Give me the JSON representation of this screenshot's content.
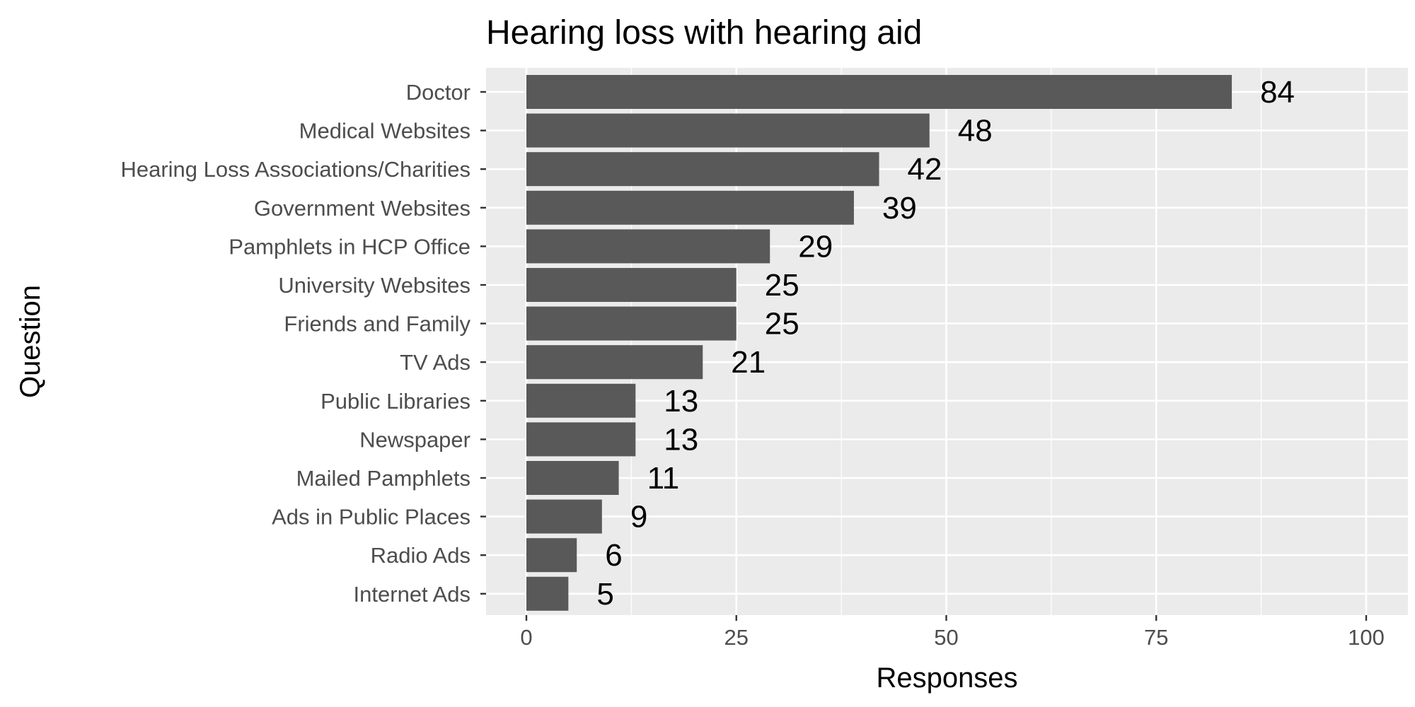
{
  "chart_data": {
    "type": "bar",
    "orientation": "horizontal",
    "title": "Hearing loss with hearing aid",
    "xlabel": "Responses",
    "ylabel": "Question",
    "categories": [
      "Doctor",
      "Medical Websites",
      "Hearing Loss Associations/Charities",
      "Government Websites",
      "Pamphlets in HCP Office",
      "University Websites",
      "Friends and Family",
      "TV Ads",
      "Public Libraries",
      "Newspaper",
      "Mailed Pamphlets",
      "Ads in Public Places",
      "Radio Ads",
      "Internet Ads"
    ],
    "values": [
      84,
      48,
      42,
      39,
      29,
      25,
      25,
      21,
      13,
      13,
      11,
      9,
      6,
      5
    ],
    "data_labels": [
      "84",
      "48",
      "42",
      "39",
      "29",
      "25",
      "25",
      "21",
      "13",
      "13",
      "11",
      "9",
      "6",
      "5"
    ],
    "xlim": [
      0,
      100
    ],
    "xticks": [
      0,
      25,
      50,
      75,
      100
    ],
    "grid": true,
    "bar_color": "#595959",
    "panel_background": "#ebebeb",
    "gridline_color": "#ffffff"
  }
}
